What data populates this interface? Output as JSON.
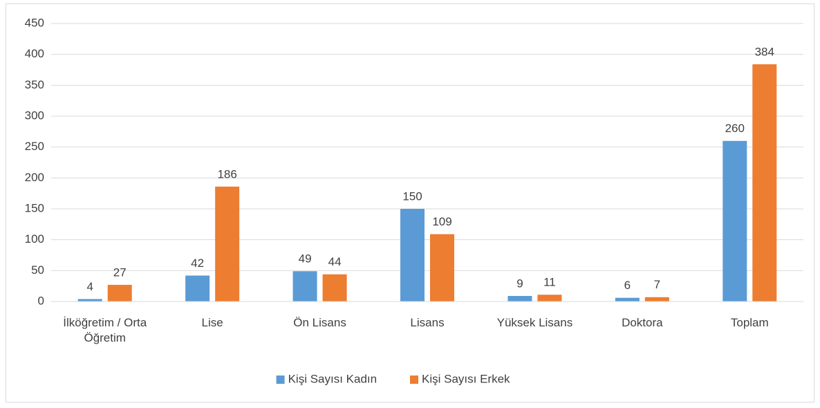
{
  "chart_data": {
    "type": "bar",
    "categories": [
      "İlköğretim / Orta Öğretim",
      "Lise",
      "Ön Lisans",
      "Lisans",
      "Yüksek Lisans",
      "Doktora",
      "Toplam"
    ],
    "series": [
      {
        "name": "Kişi Sayısı Kadın",
        "color": "#5b9bd5",
        "values": [
          4,
          42,
          49,
          150,
          9,
          6,
          260
        ]
      },
      {
        "name": "Kişi Sayısı Erkek",
        "color": "#ed7d31",
        "values": [
          27,
          186,
          44,
          109,
          11,
          7,
          384
        ]
      }
    ],
    "ylim": [
      0,
      450
    ],
    "yticks": [
      0,
      50,
      100,
      150,
      200,
      250,
      300,
      350,
      400,
      450
    ],
    "grid": true,
    "legend": "bottom"
  }
}
